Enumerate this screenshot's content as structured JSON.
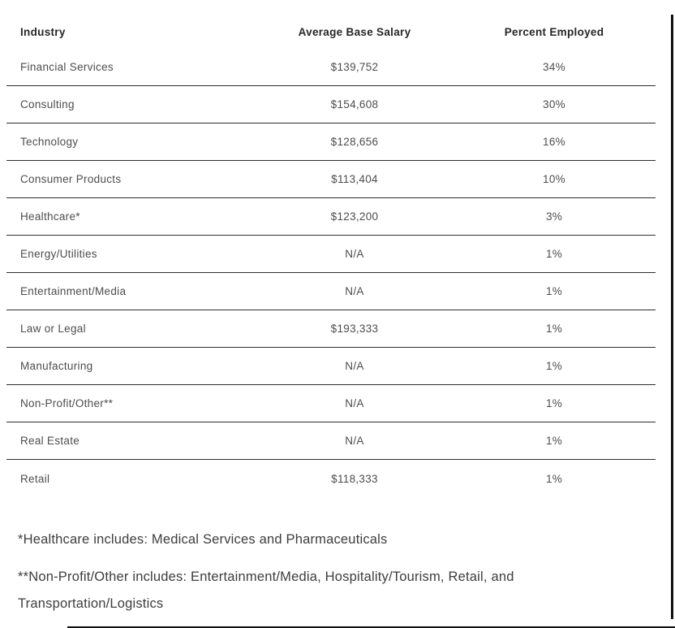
{
  "chart_data": {
    "type": "table",
    "columns": [
      "Industry",
      "Average Base Salary",
      "Percent Employed"
    ],
    "rows": [
      {
        "industry": "Financial Services",
        "salary": "$139,752",
        "percent": "34%"
      },
      {
        "industry": "Consulting",
        "salary": "$154,608",
        "percent": "30%"
      },
      {
        "industry": "Technology",
        "salary": "$128,656",
        "percent": "16%"
      },
      {
        "industry": "Consumer Products",
        "salary": "$113,404",
        "percent": "10%"
      },
      {
        "industry": "Healthcare*",
        "salary": "$123,200",
        "percent": "3%"
      },
      {
        "industry": "Energy/Utilities",
        "salary": "N/A",
        "percent": "1%"
      },
      {
        "industry": "Entertainment/Media",
        "salary": "N/A",
        "percent": "1%"
      },
      {
        "industry": "Law or Legal",
        "salary": "$193,333",
        "percent": "1%"
      },
      {
        "industry": "Manufacturing",
        "salary": "N/A",
        "percent": "1%"
      },
      {
        "industry": "Non-Profit/Other**",
        "salary": "N/A",
        "percent": "1%"
      },
      {
        "industry": "Real Estate",
        "salary": "N/A",
        "percent": "1%"
      },
      {
        "industry": "Retail",
        "salary": "$118,333",
        "percent": "1%"
      }
    ]
  },
  "footnotes": [
    "*Healthcare includes: Medical Services and Pharmaceuticals",
    "**Non-Profit/Other includes: Entertainment/Media, Hospitality/Tourism, Retail, and Transportation/Logistics"
  ],
  "colors": {
    "background": "#ffffff",
    "rule": "#2e2e2e",
    "header_text": "#262626",
    "cell_text": "#4d4d4d",
    "footnote_text": "#3d3d3d",
    "edge": "#111111"
  }
}
